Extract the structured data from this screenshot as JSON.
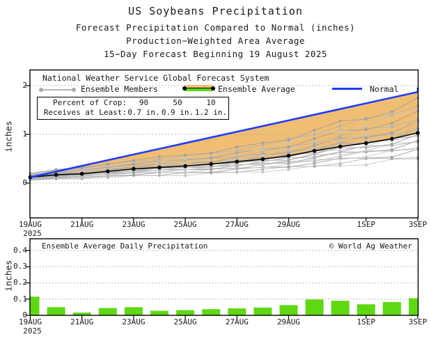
{
  "header": {
    "title": "US Soybeans Precipitation",
    "subtitle1": "Forecast Precipitation Compared to Normal (inches)",
    "subtitle2": "Production−Weighted Area Average",
    "subtitle3": "15−Day Forecast Beginning 19 August 2025"
  },
  "chart_data": [
    {
      "type": "line",
      "source_label": "National Weather Service Global Forecast System",
      "legend": {
        "ensemble_members": "Ensemble Members",
        "ensemble_average": "Ensemble Average",
        "normal": "Normal"
      },
      "percent_table": {
        "rows": [
          [
            "Percent of Crop:",
            "90",
            "50",
            "10"
          ],
          [
            "Receives at Least:",
            "0.7 in.",
            "0.9 in.",
            "1.2 in."
          ]
        ]
      },
      "ylabel": "inches",
      "ylim": [
        -0.71,
        2.33
      ],
      "yticks": [
        0,
        1,
        2
      ],
      "xticks": [
        {
          "x": 0,
          "label": "19AUG",
          "sublabel": "2025"
        },
        {
          "x": 2,
          "label": "21AUG"
        },
        {
          "x": 4,
          "label": "23AUG"
        },
        {
          "x": 6,
          "label": "25AUG"
        },
        {
          "x": 8,
          "label": "27AUG"
        },
        {
          "x": 10,
          "label": "29AUG"
        },
        {
          "x": 13,
          "label": "1SEP"
        },
        {
          "x": 15,
          "label": "3SEP"
        }
      ],
      "x_domain_days": [
        0,
        15
      ],
      "normal": {
        "x": [
          0,
          15
        ],
        "values": [
          0.12,
          1.87
        ],
        "end_cap": 1.96
      },
      "ensemble_average": {
        "values": [
          0.12,
          0.17,
          0.19,
          0.24,
          0.29,
          0.32,
          0.35,
          0.39,
          0.44,
          0.49,
          0.56,
          0.66,
          0.75,
          0.82,
          0.91,
          1.03
        ]
      },
      "ensemble_member_scales": [
        0.48,
        0.55,
        0.62,
        0.68,
        0.74,
        0.79,
        0.83,
        0.87,
        0.91,
        0.95,
        0.99,
        1.03,
        1.07,
        1.12,
        1.17,
        1.23,
        1.3,
        1.38,
        1.47,
        1.57,
        1.64
      ],
      "band": {
        "between": [
          "ensemble_average",
          "normal"
        ],
        "meaning": "deficit vs normal"
      },
      "colors": {
        "normal": "#1E3CFF",
        "average": "#000000",
        "members": "#b4b4b4",
        "band": "#F0BE72",
        "average_band_green": "#5FD813",
        "grid": "#a6a6a6"
      }
    },
    {
      "type": "bar",
      "title": "Ensemble Average Daily Precipitation",
      "credit": "© World Ag Weather",
      "ylabel": "inches",
      "ylim": [
        0,
        0.47
      ],
      "yticks": [
        0,
        0.1,
        0.2,
        0.3,
        0.4
      ],
      "xticks": [
        {
          "x": 0,
          "label": "19AUG",
          "sublabel": "2025"
        },
        {
          "x": 2,
          "label": "21AUG"
        },
        {
          "x": 4,
          "label": "23AUG"
        },
        {
          "x": 6,
          "label": "25AUG"
        },
        {
          "x": 8,
          "label": "27AUG"
        },
        {
          "x": 10,
          "label": "29AUG"
        },
        {
          "x": 13,
          "label": "1SEP"
        },
        {
          "x": 15,
          "label": "3SEP"
        }
      ],
      "days": [
        0,
        1,
        2,
        3,
        4,
        5,
        6,
        7,
        8,
        9,
        10,
        11,
        12,
        13,
        14,
        15
      ],
      "values": [
        0.115,
        0.05,
        0.017,
        0.045,
        0.05,
        0.028,
        0.032,
        0.038,
        0.043,
        0.048,
        0.063,
        0.098,
        0.09,
        0.068,
        0.082,
        0.105
      ],
      "bar_color": "#5FD813",
      "grid_color": "#a6a6a6"
    }
  ]
}
